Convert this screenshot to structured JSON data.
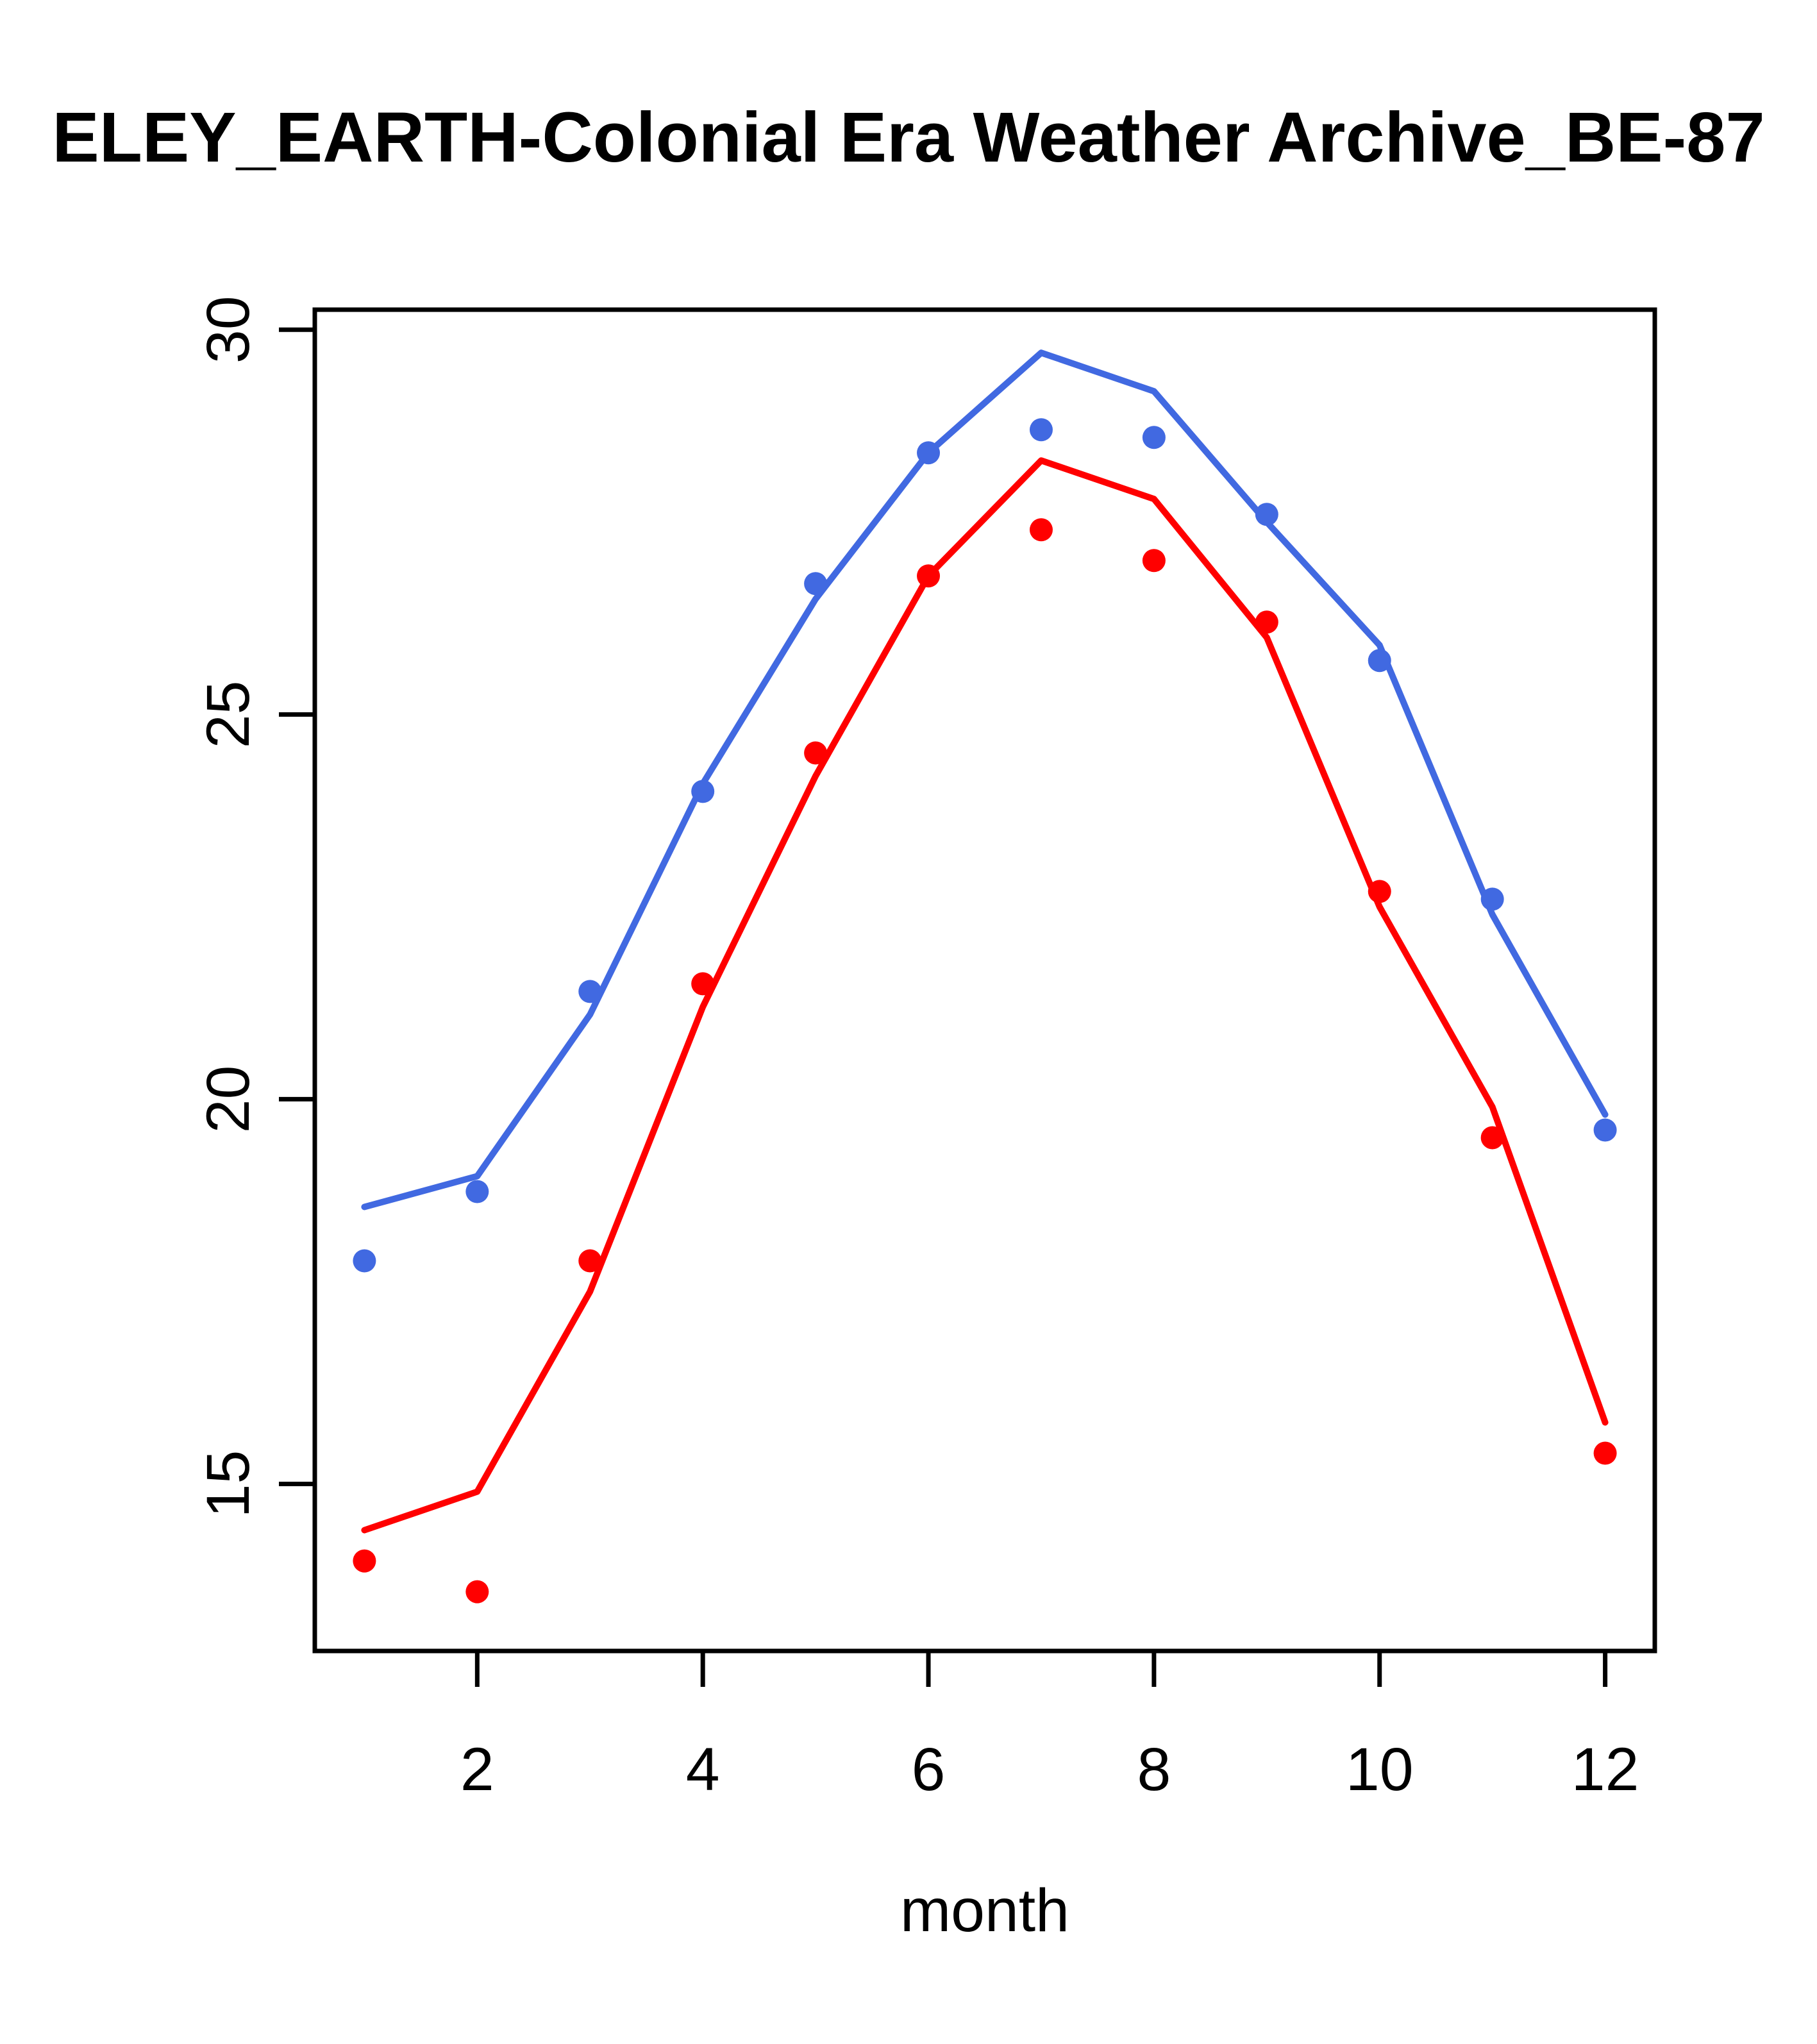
{
  "chart_data": {
    "type": "scatter",
    "subtype": "scatter-with-fitted-lines",
    "title": "ELEY_EARTH-Colonial Era Weather Archive_BE-87",
    "xlabel": "month",
    "ylabel": "",
    "x": [
      1,
      2,
      3,
      4,
      5,
      6,
      7,
      8,
      9,
      10,
      11,
      12
    ],
    "series": [
      {
        "name": "blue-points",
        "style": "points",
        "color": "#4169E1",
        "values": [
          17.9,
          18.8,
          21.4,
          24.0,
          26.7,
          28.4,
          28.7,
          28.6,
          27.6,
          25.7,
          22.6,
          19.6
        ]
      },
      {
        "name": "red-points",
        "style": "points",
        "color": "#FF0000",
        "values": [
          14.0,
          13.6,
          17.9,
          21.5,
          24.5,
          26.8,
          27.4,
          27.0,
          26.2,
          22.7,
          19.5,
          15.4
        ]
      },
      {
        "name": "blue-line",
        "style": "line",
        "color": "#4169E1",
        "values": [
          18.6,
          19.0,
          21.1,
          24.1,
          26.5,
          28.4,
          29.7,
          29.2,
          27.5,
          25.9,
          22.4,
          19.8
        ]
      },
      {
        "name": "red-line",
        "style": "line",
        "color": "#FF0000",
        "values": [
          14.4,
          14.9,
          17.5,
          21.2,
          24.2,
          26.8,
          28.3,
          27.8,
          26.0,
          22.5,
          19.9,
          15.8
        ]
      }
    ],
    "x_ticks": [
      2,
      4,
      6,
      8,
      10,
      12
    ],
    "y_ticks": [
      15,
      20,
      25,
      30
    ],
    "xlim": [
      0.56,
      12.44
    ],
    "ylim": [
      12.83,
      30.26
    ],
    "grid": false,
    "legend": "none",
    "axis_color": "#000000",
    "background_color": "#ffffff"
  }
}
